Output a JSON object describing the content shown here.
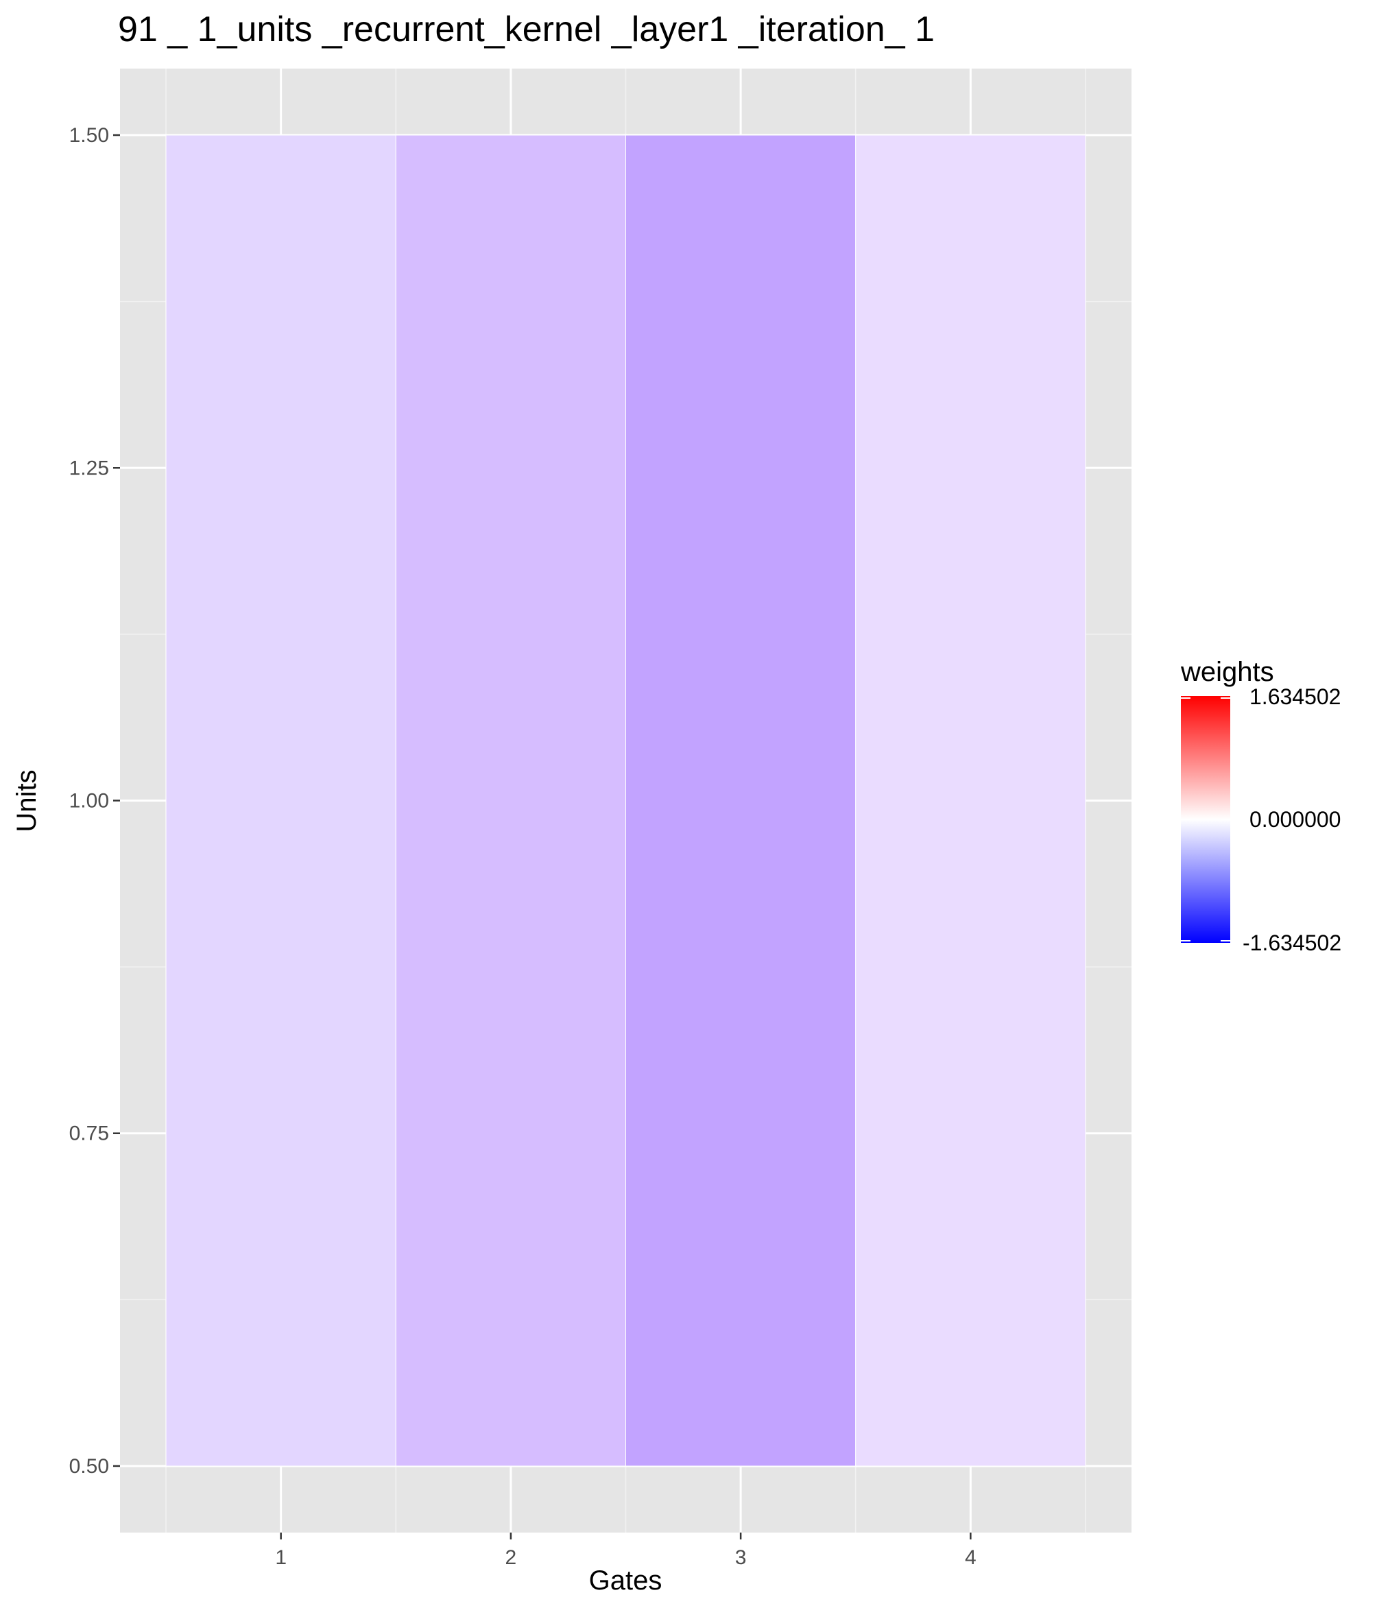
{
  "chart_data": {
    "type": "heatmap",
    "title": "91 _ 1_units _recurrent_kernel _layer1 _iteration_ 1",
    "xlabel": "Gates",
    "ylabel": "Units",
    "x_ticks": [
      "1",
      "2",
      "3",
      "4"
    ],
    "y_ticks": [
      "0.50",
      "0.75",
      "1.00",
      "1.25",
      "1.50"
    ],
    "xlim": [
      0.3,
      4.7
    ],
    "ylim": [
      0.45,
      1.55
    ],
    "grid": true,
    "cells": [
      {
        "gate": 1,
        "unit": 1,
        "weight": -0.2,
        "color": "#e3d6ff"
      },
      {
        "gate": 2,
        "unit": 1,
        "weight": -0.38,
        "color": "#d6bdff"
      },
      {
        "gate": 3,
        "unit": 1,
        "weight": -0.55,
        "color": "#c2a3ff"
      },
      {
        "gate": 4,
        "unit": 1,
        "weight": -0.15,
        "color": "#eadcff"
      }
    ],
    "legend": {
      "title": "weights",
      "position": "right",
      "labels": [
        "1.634502",
        "0.000000",
        "-1.634502"
      ],
      "max": 1.634502,
      "mid": 0.0,
      "min": -1.634502,
      "colors": {
        "high": "#ff0000",
        "mid": "#ffffff",
        "low": "#0000ff"
      }
    }
  }
}
